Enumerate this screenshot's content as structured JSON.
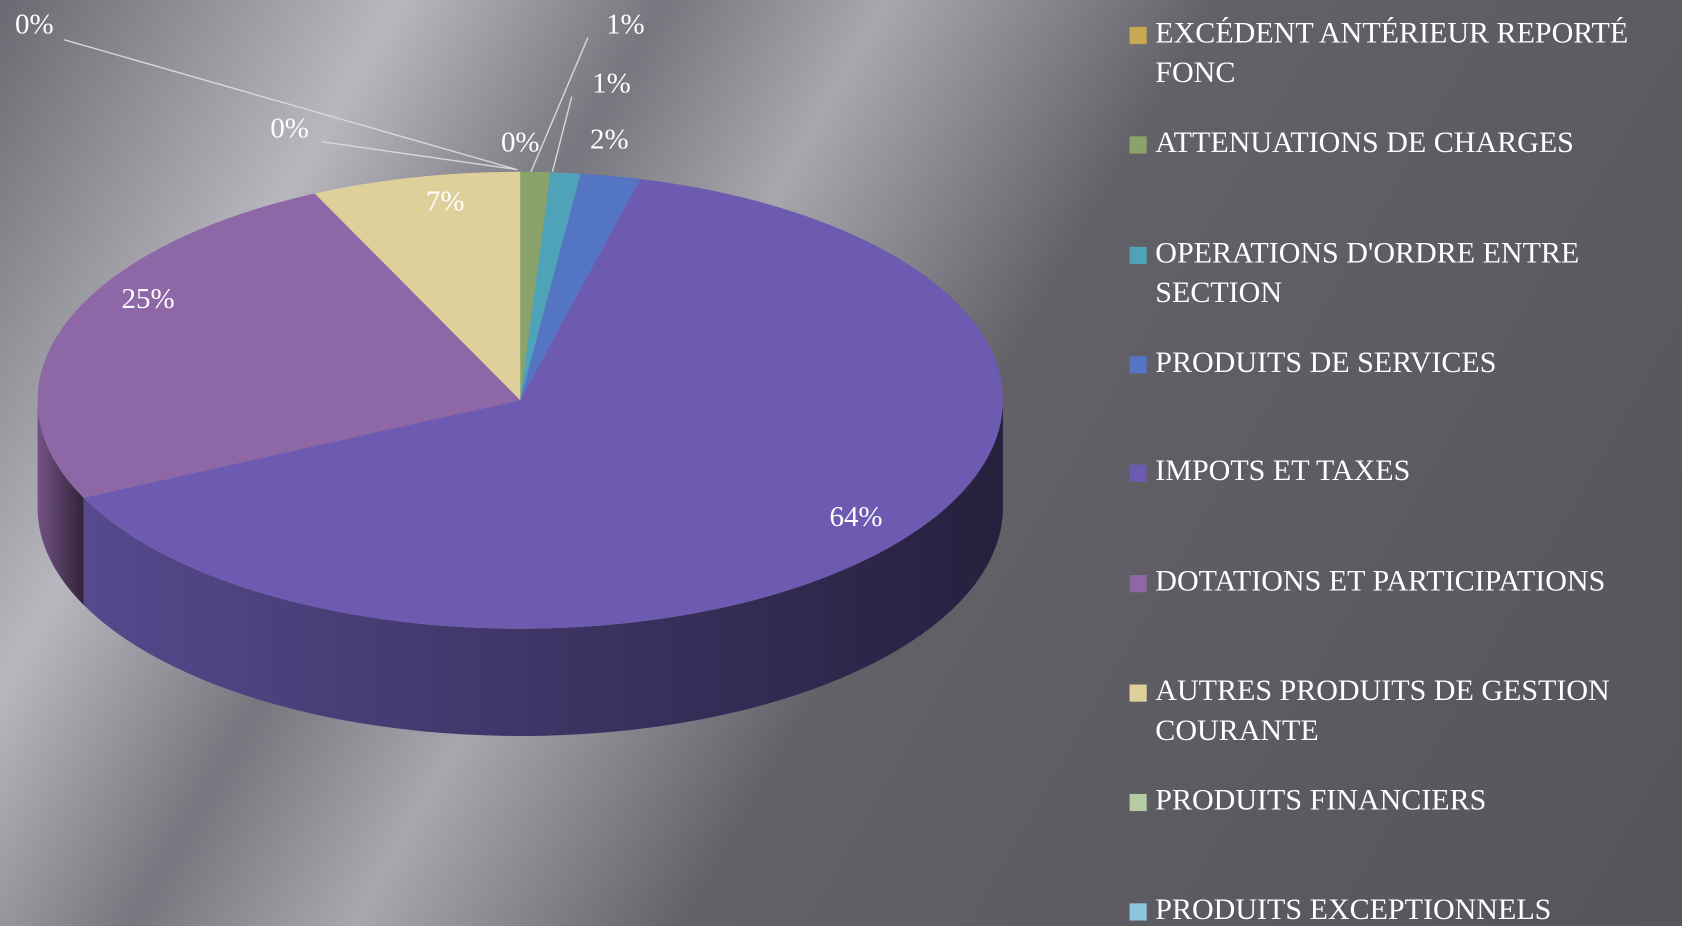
{
  "chart_data": {
    "type": "pie",
    "is_3d": true,
    "categories": [
      "EXCÉDENT ANTÉRIEUR REPORTÉ FONC",
      "ATTENUATIONS DE CHARGES",
      "OPERATIONS D'ORDRE ENTRE SECTION",
      "PRODUITS DE SERVICES",
      "IMPOTS ET TAXES",
      "DOTATIONS ET PARTICIPATIONS",
      "AUTRES PRODUITS DE GESTION COURANTE",
      "PRODUITS FINANCIERS",
      "PRODUITS EXCEPTIONNELS"
    ],
    "values": [
      0,
      1,
      1,
      2,
      64,
      25,
      7,
      0,
      0
    ],
    "value_labels": [
      "0%",
      "1%",
      "1%",
      "2%",
      "64%",
      "25%",
      "7%",
      "0%",
      "0%"
    ],
    "colors": [
      "#c8a852",
      "#8aa36a",
      "#4ea3b8",
      "#5474c4",
      "#6c5bb0",
      "#8e67a6",
      "#ddd09a",
      "#b5cca5",
      "#8cc7de"
    ],
    "legend": "right"
  }
}
